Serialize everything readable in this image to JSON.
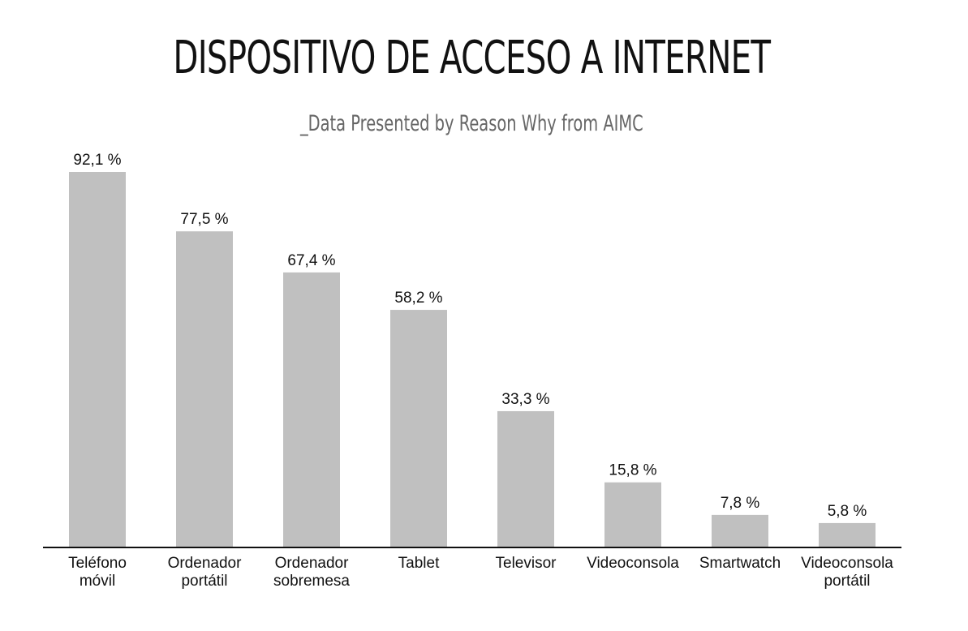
{
  "chart_data": {
    "type": "bar",
    "title": "DISPOSITIVO DE ACCESO A INTERNET",
    "subtitle": "_Data Presented by Reason Why from AIMC",
    "categories": [
      [
        "Teléfono",
        "móvil"
      ],
      [
        "Ordenador",
        "portátil"
      ],
      [
        "Ordenador",
        "sobremesa"
      ],
      [
        "Tablet"
      ],
      [
        "Televisor"
      ],
      [
        "Videoconsola"
      ],
      [
        "Smartwatch"
      ],
      [
        "Videoconsola",
        "portátil"
      ]
    ],
    "values": [
      92.1,
      77.5,
      67.4,
      58.2,
      33.3,
      15.8,
      7.8,
      5.8
    ],
    "value_labels": [
      "92,1 %",
      "77,5 %",
      "67,4 %",
      "58,2 %",
      "33,3 %",
      "15,8 %",
      "7,8 %",
      "5,8 %"
    ],
    "ylim": [
      0,
      100
    ],
    "grid": false,
    "legend": "none",
    "colors": {
      "bar": "#c0c0c0",
      "axis": "#111111",
      "text": "#111111",
      "subtitle": "#666666"
    }
  }
}
